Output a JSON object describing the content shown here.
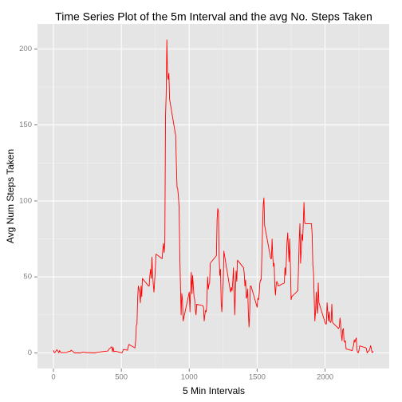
{
  "chart_data": {
    "type": "line",
    "title": "Time Series Plot of the 5m Interval and the avg No. Steps Taken",
    "x_label": "5 Min Intervals",
    "y_label": "Avg Num Steps Taken",
    "color": "#ff0000",
    "grid": true,
    "xlim": [
      -117.75,
      2472.75
    ],
    "ylim": [
      -10.3,
      216.5
    ],
    "xticks": [
      0,
      500,
      1000,
      1500,
      2000
    ],
    "yticks": [
      0,
      50,
      100,
      150,
      200
    ],
    "xminor_ticks": [
      250,
      750,
      1250,
      1750,
      2250
    ],
    "yminor_ticks": [
      25,
      75,
      125,
      175
    ],
    "x": [
      0,
      5,
      10,
      25,
      35,
      40,
      45,
      55,
      100,
      105,
      125,
      130,
      155,
      200,
      215,
      245,
      300,
      320,
      335,
      400,
      410,
      430,
      435,
      440,
      445,
      455,
      505,
      515,
      530,
      545,
      550,
      555,
      600,
      605,
      610,
      615,
      620,
      625,
      630,
      635,
      640,
      645,
      650,
      655,
      700,
      705,
      710,
      715,
      720,
      725,
      730,
      735,
      740,
      745,
      750,
      755,
      800,
      805,
      810,
      815,
      820,
      825,
      830,
      835,
      840,
      845,
      850,
      855,
      900,
      905,
      910,
      915,
      920,
      925,
      930,
      935,
      940,
      945,
      950,
      955,
      1000,
      1005,
      1010,
      1015,
      1020,
      1025,
      1030,
      1035,
      1040,
      1045,
      1050,
      1055,
      1100,
      1105,
      1110,
      1115,
      1120,
      1125,
      1130,
      1135,
      1140,
      1145,
      1150,
      1155,
      1200,
      1205,
      1210,
      1215,
      1220,
      1225,
      1230,
      1235,
      1240,
      1245,
      1250,
      1255,
      1300,
      1305,
      1310,
      1315,
      1320,
      1325,
      1330,
      1335,
      1340,
      1345,
      1350,
      1355,
      1400,
      1405,
      1410,
      1415,
      1420,
      1425,
      1430,
      1435,
      1440,
      1445,
      1450,
      1455,
      1500,
      1505,
      1510,
      1515,
      1520,
      1525,
      1530,
      1535,
      1540,
      1545,
      1550,
      1555,
      1600,
      1605,
      1610,
      1615,
      1620,
      1625,
      1630,
      1635,
      1640,
      1645,
      1650,
      1655,
      1700,
      1705,
      1710,
      1715,
      1720,
      1725,
      1730,
      1735,
      1740,
      1745,
      1750,
      1755,
      1800,
      1805,
      1810,
      1815,
      1820,
      1825,
      1830,
      1835,
      1840,
      1845,
      1850,
      1855,
      1900,
      1905,
      1910,
      1915,
      1920,
      1925,
      1930,
      1935,
      1940,
      1945,
      1950,
      1955,
      2000,
      2005,
      2010,
      2015,
      2020,
      2025,
      2030,
      2035,
      2040,
      2045,
      2050,
      2055,
      2100,
      2105,
      2110,
      2115,
      2120,
      2125,
      2130,
      2135,
      2140,
      2145,
      2150,
      2155,
      2200,
      2205,
      2210,
      2215,
      2220,
      2225,
      2230,
      2235,
      2240,
      2245,
      2250,
      2255,
      2300,
      2305,
      2310,
      2315,
      2320,
      2325,
      2330,
      2335,
      2340,
      2345,
      2350,
      2355
    ],
    "values": [
      1.7,
      0.3,
      0.1,
      2.1,
      0.9,
      0,
      1.5,
      0.1,
      0.3,
      0.7,
      1.1,
      1.8,
      0,
      0,
      0.5,
      0.2,
      0,
      0.3,
      0.5,
      1.2,
      2.6,
      4,
      0.7,
      3.5,
      0.8,
      1.1,
      0,
      2.2,
      2.1,
      1.7,
      4,
      5.5,
      3.3,
      8,
      18,
      19,
      36,
      44,
      42,
      39,
      33,
      44,
      37,
      49,
      44,
      44,
      51,
      55,
      49,
      63,
      52,
      45,
      40,
      47,
      55,
      65,
      62,
      68,
      72,
      66,
      72,
      155,
      170,
      206,
      183,
      180,
      184,
      167,
      143,
      124,
      109,
      108,
      103,
      96,
      66,
      45,
      25,
      39,
      35,
      21,
      40,
      27,
      42,
      53,
      39,
      51,
      44,
      37,
      35,
      28,
      25,
      32,
      31,
      30,
      21,
      25,
      28,
      27,
      33,
      50,
      42,
      45,
      46,
      59,
      64,
      88,
      95,
      93,
      63,
      51,
      55,
      33,
      27,
      38,
      46,
      67,
      42,
      40,
      43,
      41,
      46,
      56,
      43,
      25,
      40,
      54,
      47,
      61,
      56,
      52,
      44,
      48,
      36,
      37,
      42,
      27,
      17,
      26,
      44,
      44,
      30,
      36,
      35,
      39,
      46,
      48,
      48,
      65,
      83,
      98,
      102,
      84,
      62,
      62,
      75,
      63,
      57,
      59,
      44,
      38,
      45,
      47,
      46,
      44,
      46,
      56,
      51,
      61,
      73,
      79,
      69,
      60,
      75,
      57,
      35,
      37,
      41,
      58,
      75,
      85,
      59,
      68,
      78,
      74,
      86,
      99,
      86,
      85,
      85,
      78,
      58,
      53,
      36,
      21,
      27,
      40,
      30,
      26,
      46,
      33,
      20,
      19,
      19,
      33,
      27,
      21,
      27,
      21,
      20,
      21,
      32,
      20,
      16,
      17,
      23,
      19,
      12,
      8,
      15,
      16,
      8,
      7,
      8,
      2.6,
      1.5,
      3.7,
      4.8,
      8.5,
      7.1,
      8.7,
      9.8,
      2.2,
      0.3,
      0.1,
      1.6,
      4.6,
      3.3,
      2.8,
      0,
      0.8,
      1,
      1.6,
      2.6,
      4.7,
      3.3,
      0.6,
      0.2,
      1.1
    ]
  }
}
